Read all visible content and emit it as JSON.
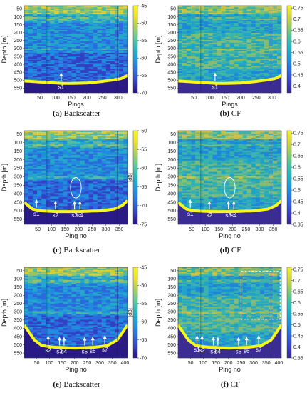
{
  "figure": {
    "panels": [
      {
        "id": "a",
        "caption_letter": "(a)",
        "caption_text": "Backscatter",
        "xlabel": "Pings",
        "ylabel": "Depth [m]",
        "cbar_label": "",
        "colormap": "backscatter",
        "xticks": [
          50,
          100,
          150,
          200,
          250,
          300
        ],
        "xlim": [
          0,
          330
        ],
        "yticks": [
          50,
          100,
          150,
          200,
          250,
          300,
          350,
          400,
          450,
          500,
          550
        ],
        "ylim": [
          30,
          580
        ],
        "cbar_ticks": [
          -45,
          -50,
          -55,
          -60,
          -65,
          -70
        ],
        "cbar_range": [
          -70,
          -45
        ],
        "seabed": [
          [
            0,
            505
          ],
          [
            40,
            510
          ],
          [
            80,
            515
          ],
          [
            120,
            520
          ],
          [
            160,
            520
          ],
          [
            200,
            518
          ],
          [
            240,
            510
          ],
          [
            280,
            500
          ],
          [
            310,
            490
          ],
          [
            330,
            470
          ]
        ],
        "markers": [
          {
            "label": "s1",
            "x": 118
          }
        ],
        "ellipses": [],
        "dashed_box": null
      },
      {
        "id": "b",
        "caption_letter": "(b)",
        "caption_text": "CF",
        "xlabel": "Pings",
        "ylabel": "Depth [m]",
        "cbar_label": "",
        "colormap": "cf",
        "xticks": [
          50,
          100,
          150,
          200,
          250,
          300
        ],
        "xlim": [
          0,
          330
        ],
        "yticks": [
          50,
          100,
          150,
          200,
          250,
          300,
          350,
          400,
          450,
          500,
          550
        ],
        "ylim": [
          30,
          580
        ],
        "cbar_ticks": [
          0.75,
          0.7,
          0.65,
          0.6,
          0.55,
          0.5,
          0.45,
          0.4
        ],
        "cbar_range": [
          0.37,
          0.76
        ],
        "seabed": [
          [
            0,
            505
          ],
          [
            40,
            510
          ],
          [
            80,
            515
          ],
          [
            120,
            520
          ],
          [
            160,
            520
          ],
          [
            200,
            518
          ],
          [
            240,
            510
          ],
          [
            280,
            500
          ],
          [
            310,
            490
          ],
          [
            330,
            470
          ]
        ],
        "markers": [
          {
            "label": "s1",
            "x": 118
          }
        ],
        "ellipses": [],
        "dashed_box": null
      },
      {
        "id": "c",
        "caption_letter": "(c)",
        "caption_text": "Backscatter",
        "xlabel": "Ping no",
        "ylabel": "Depth [m]",
        "cbar_label": "[dB]",
        "colormap": "backscatter",
        "xticks": [
          50,
          100,
          150,
          200,
          250,
          300,
          350
        ],
        "xlim": [
          0,
          380
        ],
        "yticks": [
          50,
          100,
          150,
          200,
          250,
          300,
          350,
          400,
          450,
          500,
          550
        ],
        "ylim": [
          30,
          580
        ],
        "cbar_ticks": [
          -50,
          -55,
          -60,
          -65,
          -70,
          -75
        ],
        "cbar_range": [
          -75,
          -50
        ],
        "seabed": [
          [
            0,
            450
          ],
          [
            30,
            490
          ],
          [
            60,
            500
          ],
          [
            120,
            505
          ],
          [
            200,
            505
          ],
          [
            280,
            500
          ],
          [
            330,
            490
          ],
          [
            360,
            470
          ],
          [
            380,
            440
          ]
        ],
        "markers": [
          {
            "label": "s1",
            "x": 45
          },
          {
            "label": "s2",
            "x": 115
          },
          {
            "label": "s3",
            "x": 185
          },
          {
            "label": "s4",
            "x": 205
          }
        ],
        "ellipses": [
          {
            "cx": 190,
            "cy": 365,
            "rx": 9,
            "ry": 60
          }
        ],
        "dashed_box": null
      },
      {
        "id": "d",
        "caption_letter": "(d)",
        "caption_text": "CF",
        "xlabel": "Ping no",
        "ylabel": "Depth [m]",
        "cbar_label": "",
        "colormap": "cf",
        "xticks": [
          50,
          100,
          150,
          200,
          250,
          300,
          350
        ],
        "xlim": [
          0,
          380
        ],
        "yticks": [
          50,
          100,
          150,
          200,
          250,
          300,
          350,
          400,
          450,
          500,
          550
        ],
        "ylim": [
          30,
          580
        ],
        "cbar_ticks": [
          0.75,
          0.7,
          0.65,
          0.6,
          0.55,
          0.5,
          0.45,
          0.4,
          0.35
        ],
        "cbar_range": [
          0.35,
          0.76
        ],
        "seabed": [
          [
            0,
            450
          ],
          [
            30,
            490
          ],
          [
            60,
            500
          ],
          [
            120,
            505
          ],
          [
            200,
            505
          ],
          [
            280,
            500
          ],
          [
            330,
            490
          ],
          [
            360,
            470
          ],
          [
            380,
            440
          ]
        ],
        "markers": [
          {
            "label": "s1",
            "x": 45
          },
          {
            "label": "s2",
            "x": 115
          },
          {
            "label": "s3",
            "x": 185
          },
          {
            "label": "s4",
            "x": 205
          }
        ],
        "ellipses": [
          {
            "cx": 190,
            "cy": 365,
            "rx": 9,
            "ry": 60
          }
        ],
        "dashed_box": null
      },
      {
        "id": "e",
        "caption_letter": "(e)",
        "caption_text": "Backscatter",
        "xlabel": "Ping no",
        "ylabel": "Depth [m]",
        "cbar_label": "[dB]",
        "colormap": "backscatter",
        "xticks": [
          50,
          100,
          150,
          200,
          250,
          300,
          350,
          400
        ],
        "xlim": [
          0,
          410
        ],
        "yticks": [
          50,
          100,
          150,
          200,
          250,
          300,
          350,
          400,
          450,
          500,
          550
        ],
        "ylim": [
          30,
          580
        ],
        "cbar_ticks": [
          -45,
          -50,
          -55,
          -60,
          -65,
          -70
        ],
        "cbar_range": [
          -70,
          -45
        ],
        "seabed": [
          [
            0,
            380
          ],
          [
            40,
            470
          ],
          [
            70,
            505
          ],
          [
            120,
            515
          ],
          [
            200,
            520
          ],
          [
            280,
            515
          ],
          [
            330,
            505
          ],
          [
            370,
            470
          ],
          [
            410,
            380
          ]
        ],
        "markers": [
          {
            "label": "s2",
            "x": 95
          },
          {
            "label": "s3",
            "x": 140
          },
          {
            "label": "s4",
            "x": 158
          },
          {
            "label": "s5",
            "x": 240
          },
          {
            "label": "s6",
            "x": 272
          },
          {
            "label": "s7",
            "x": 320
          }
        ],
        "ellipses": [],
        "dashed_box": null
      },
      {
        "id": "f",
        "caption_letter": "(f)",
        "caption_text": "CF",
        "xlabel": "Ping no",
        "ylabel": "Depth [m]",
        "cbar_label": "",
        "colormap": "cf",
        "xticks": [
          50,
          100,
          150,
          200,
          250,
          300,
          350,
          400
        ],
        "xlim": [
          0,
          410
        ],
        "yticks": [
          50,
          100,
          150,
          200,
          250,
          300,
          350,
          400,
          450,
          500,
          550
        ],
        "ylim": [
          30,
          580
        ],
        "cbar_ticks": [
          0.75,
          0.7,
          0.65,
          0.6,
          0.55,
          0.5,
          0.45,
          0.4,
          0.35
        ],
        "cbar_range": [
          0.35,
          0.76
        ],
        "seabed": [
          [
            0,
            380
          ],
          [
            40,
            470
          ],
          [
            70,
            505
          ],
          [
            120,
            515
          ],
          [
            200,
            520
          ],
          [
            280,
            515
          ],
          [
            330,
            505
          ],
          [
            370,
            470
          ],
          [
            410,
            380
          ]
        ],
        "markers": [
          {
            "label": "s1",
            "x": 75
          },
          {
            "label": "s2",
            "x": 95
          },
          {
            "label": "s3",
            "x": 140
          },
          {
            "label": "s4",
            "x": 158
          },
          {
            "label": "s5",
            "x": 240
          },
          {
            "label": "s6",
            "x": 272
          },
          {
            "label": "s7",
            "x": 320
          }
        ],
        "ellipses": [],
        "dashed_box": {
          "x0": 250,
          "x1": 405,
          "y0": 55,
          "y1": 345
        }
      }
    ],
    "colors": {
      "backscatter": [
        "#2c0f8a",
        "#3241c4",
        "#2b6fe0",
        "#1f98e0",
        "#23b6c9",
        "#5ccaa0",
        "#a6d25d",
        "#f0e02a",
        "#f7f719"
      ],
      "cf": [
        "#35278f",
        "#3a3fc8",
        "#2f67e4",
        "#1d8fdc",
        "#1fb0c8",
        "#3fc2a6",
        "#8ecb6a",
        "#d6d43c",
        "#f7f719"
      ],
      "seabed": "#f7f719",
      "marker": "#ffffff"
    }
  }
}
